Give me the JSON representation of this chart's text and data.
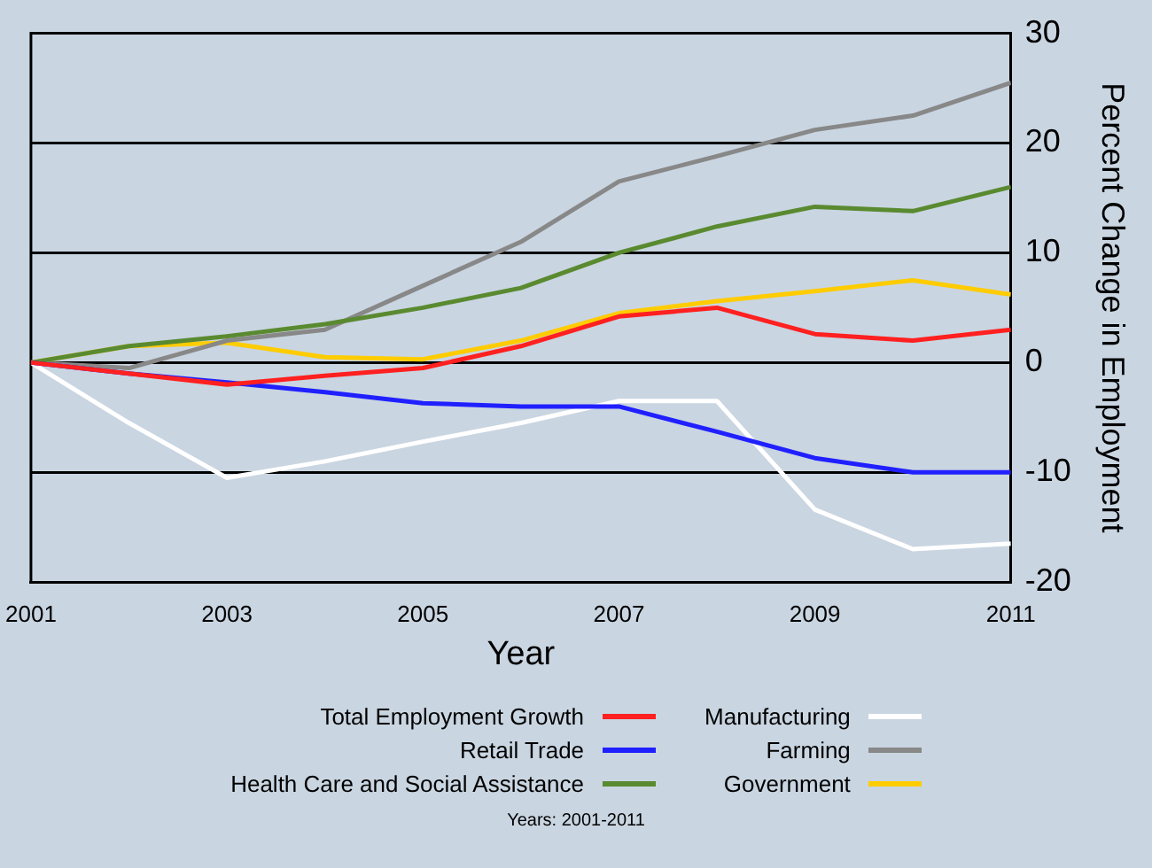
{
  "chart_data": {
    "type": "line",
    "xlabel": "Year",
    "ylabel": "Percent Change in Employment",
    "x": [
      2001,
      2002,
      2003,
      2004,
      2005,
      2006,
      2007,
      2008,
      2009,
      2010,
      2011
    ],
    "xlim": [
      2001,
      2011
    ],
    "xticks": [
      2001,
      2003,
      2005,
      2007,
      2009,
      2011
    ],
    "ylim": [
      -20,
      30
    ],
    "yticks": [
      -20,
      -10,
      0,
      10,
      20,
      30
    ],
    "grid": "y",
    "legend": "bottom",
    "marker": "none",
    "line_style": "solid",
    "annotations": [
      "Years: 2001-2011"
    ],
    "series": [
      {
        "name": "Total Employment Growth",
        "color": "#ff2020",
        "values": [
          0,
          -1,
          -2,
          -1.2,
          -0.5,
          1.5,
          4.2,
          5,
          2.6,
          2,
          3
        ]
      },
      {
        "name": "Retail Trade",
        "color": "#2020ff",
        "values": [
          0,
          -1,
          -1.8,
          -2.7,
          -3.7,
          -4,
          -4,
          -6.3,
          -8.7,
          -10,
          -10
        ]
      },
      {
        "name": "Health Care and Social Assistance",
        "color": "#5a8a30",
        "values": [
          0,
          1.5,
          2.4,
          3.5,
          5,
          6.8,
          10,
          12.4,
          14.2,
          13.8,
          16
        ]
      },
      {
        "name": "Manufacturing",
        "color": "#ffffff",
        "values": [
          0,
          -5.5,
          -10.5,
          -9,
          -7.2,
          -5.5,
          -3.5,
          -3.5,
          -13.4,
          -17,
          -16.5
        ]
      },
      {
        "name": "Farming",
        "color": "#888888",
        "values": [
          0,
          -0.5,
          2,
          3,
          7,
          11,
          16.5,
          18.8,
          21.2,
          22.5,
          25.5
        ]
      },
      {
        "name": "Government",
        "color": "#ffcc00",
        "values": [
          0,
          1.5,
          1.8,
          0.5,
          0.3,
          2,
          4.5,
          5.6,
          6.5,
          7.5,
          6.2
        ]
      }
    ]
  }
}
